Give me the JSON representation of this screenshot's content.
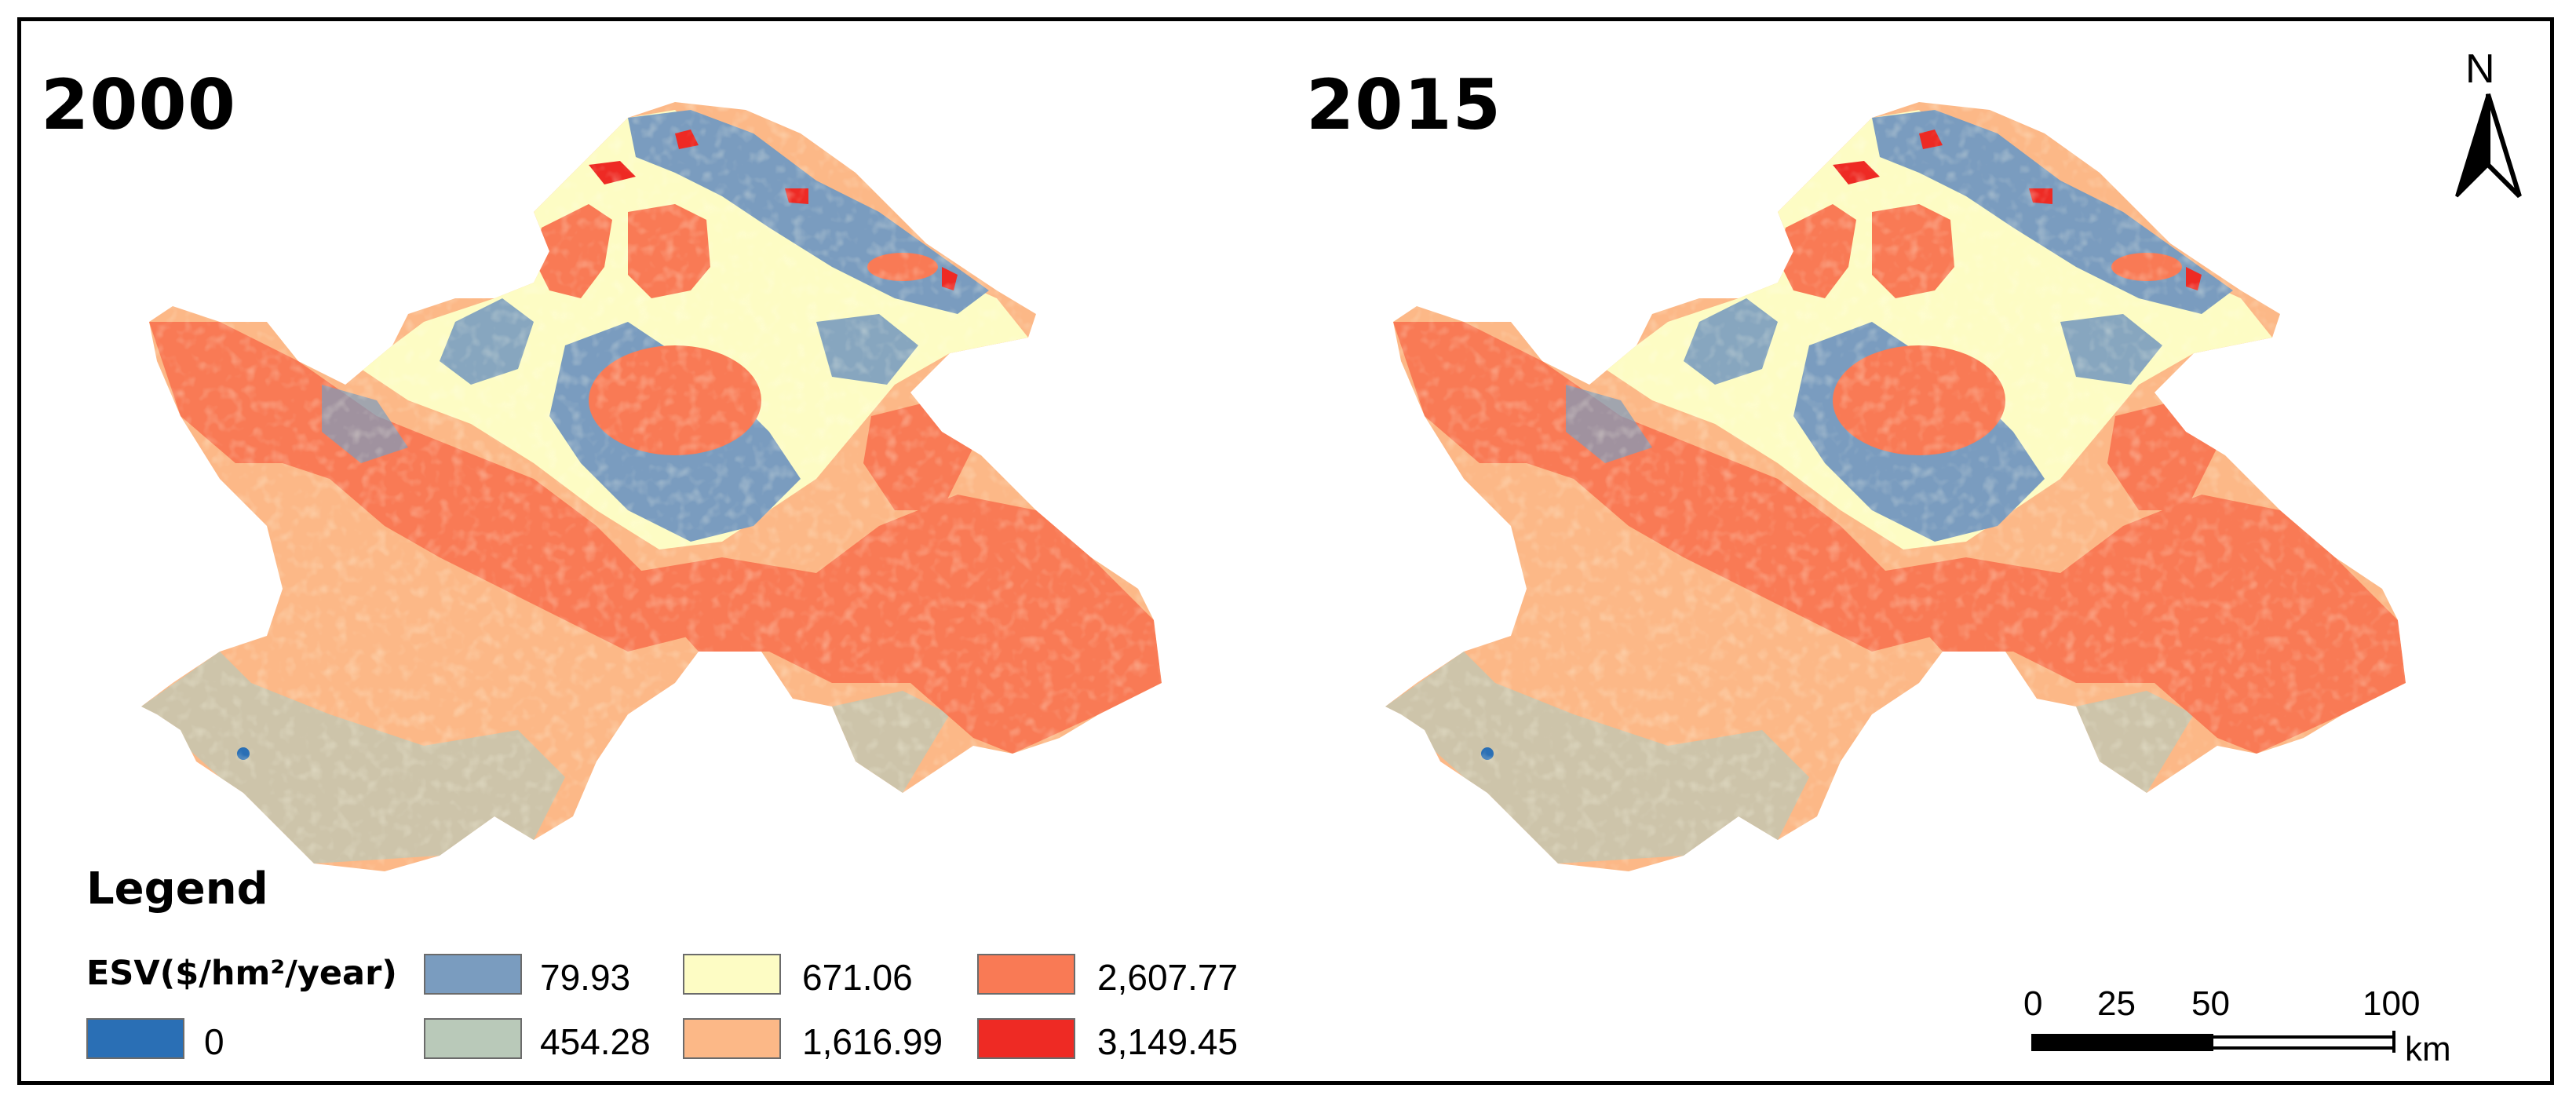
{
  "maps": [
    {
      "year": "2000"
    },
    {
      "year": "2015"
    }
  ],
  "legend": {
    "title": "Legend",
    "unit_label": "ESV($/hm²/year)",
    "classes": [
      {
        "value": "0",
        "color": "#2a6fb5"
      },
      {
        "value": "79.93",
        "color": "#7a9cbf"
      },
      {
        "value": "454.28",
        "color": "#b9c9b9"
      },
      {
        "value": "671.06",
        "color": "#fdfcc4"
      },
      {
        "value": "1,616.99",
        "color": "#fcb887"
      },
      {
        "value": "2,607.77",
        "color": "#f97a55"
      },
      {
        "value": "3,149.45",
        "color": "#ee2a24"
      }
    ]
  },
  "north_arrow": {
    "letter": "N",
    "icon": "north-arrow-icon"
  },
  "scale_bar": {
    "ticks": [
      "0",
      "25",
      "50",
      "100"
    ],
    "unit": "km"
  }
}
